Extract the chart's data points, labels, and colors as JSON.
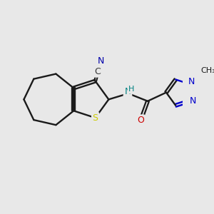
{
  "bg_color": "#e8e8e8",
  "bond_color": "#1a1a1a",
  "S_color": "#cccc00",
  "N_color": "#0000cc",
  "O_color": "#cc0000",
  "NH_color": "#008080",
  "C_color": "#333333",
  "CN_color": "#0000aa",
  "figsize": [
    3.0,
    3.0
  ],
  "dpi": 100,
  "xlim": [
    -1,
    11
  ],
  "ylim": [
    -1,
    11
  ]
}
